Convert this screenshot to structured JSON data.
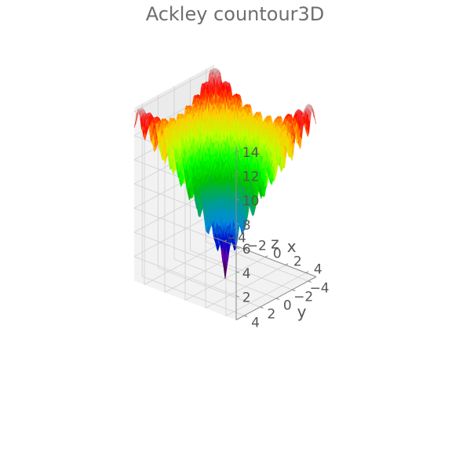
{
  "chart_data": {
    "type": "surface3d",
    "title": "Ackley countour3D",
    "function": "ackley",
    "xlabel": "x",
    "ylabel": "y",
    "zlabel": "z",
    "xlim": [
      -5,
      5
    ],
    "ylim": [
      -5,
      5
    ],
    "zlim": [
      0,
      14.3
    ],
    "x_ticks": [
      "−4",
      "−2",
      "0",
      "2",
      "4"
    ],
    "y_ticks": [
      "−4",
      "−2",
      "0",
      "2",
      "4"
    ],
    "z_ticks": [
      "2",
      "4",
      "6",
      "8",
      "10",
      "12",
      "14"
    ],
    "x_tick_values": [
      -4,
      -2,
      0,
      2,
      4
    ],
    "y_tick_values": [
      -4,
      -2,
      0,
      2,
      4
    ],
    "z_tick_values": [
      2,
      4,
      6,
      8,
      10,
      12,
      14
    ],
    "colormap": "nipy_spectral",
    "grid": true,
    "colors": {
      "pane": "#f2f2f2",
      "pane_side": "#ebebeb",
      "grid": "#d0d0d0",
      "text": "#555555",
      "title": "#6e6e6e"
    }
  }
}
